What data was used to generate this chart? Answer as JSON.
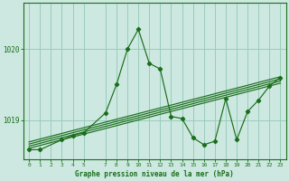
{
  "xlabel": "Graphe pression niveau de la mer (hPa)",
  "bg_color": "#cce8e0",
  "grid_color": "#99ccbb",
  "line_color": "#1a6e1a",
  "text_color": "#1a6e1a",
  "ylim": [
    1018.45,
    1020.65
  ],
  "yticks": [
    1019.0,
    1020.0
  ],
  "xlim": [
    -0.5,
    23.5
  ],
  "xticks": [
    0,
    1,
    2,
    3,
    4,
    5,
    7,
    8,
    9,
    10,
    11,
    12,
    13,
    14,
    15,
    16,
    17,
    18,
    19,
    20,
    21,
    22,
    23
  ],
  "main_x": [
    0,
    1,
    3,
    4,
    5,
    7,
    8,
    9,
    10,
    11,
    12,
    13,
    14,
    15,
    16,
    17,
    18,
    19,
    20,
    21,
    22,
    23
  ],
  "main_y": [
    1018.58,
    1018.58,
    1018.72,
    1018.78,
    1018.82,
    1019.1,
    1019.5,
    1020.0,
    1020.28,
    1019.8,
    1019.72,
    1019.05,
    1019.02,
    1018.75,
    1018.65,
    1018.7,
    1019.3,
    1018.72,
    1019.12,
    1019.28,
    1019.48,
    1019.6
  ],
  "band_lines": [
    {
      "x": [
        0,
        23
      ],
      "y": [
        1018.6,
        1019.52
      ]
    },
    {
      "x": [
        0,
        23
      ],
      "y": [
        1018.63,
        1019.55
      ]
    },
    {
      "x": [
        0,
        23
      ],
      "y": [
        1018.66,
        1019.58
      ]
    },
    {
      "x": [
        0,
        23
      ],
      "y": [
        1018.69,
        1019.61
      ]
    }
  ]
}
